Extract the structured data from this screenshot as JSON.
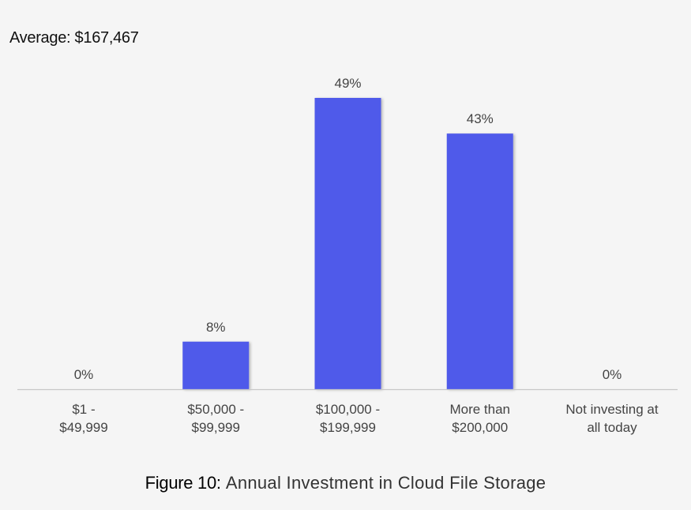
{
  "average_label": "Average: $167,467",
  "caption": {
    "prefix": "Figure 10:",
    "title": "Annual Investment in Cloud File Storage"
  },
  "colors": {
    "bar": "#4f5aea",
    "axis": "#c8c8c8",
    "text": "#444444"
  },
  "chart_data": {
    "type": "bar",
    "categories": [
      [
        "$1 -",
        "$49,999"
      ],
      [
        "$50,000 -",
        "$99,999"
      ],
      [
        "$100,000 -",
        "$199,999"
      ],
      [
        "More than",
        "$200,000"
      ],
      [
        "Not investing at",
        "all today"
      ]
    ],
    "values": [
      0,
      8,
      49,
      43,
      0
    ],
    "data_labels": [
      "0%",
      "8%",
      "49%",
      "43%",
      "0%"
    ],
    "title": "",
    "xlabel": "",
    "ylabel": "",
    "ylim": [
      0,
      49
    ],
    "grid": false,
    "legend": "none"
  }
}
